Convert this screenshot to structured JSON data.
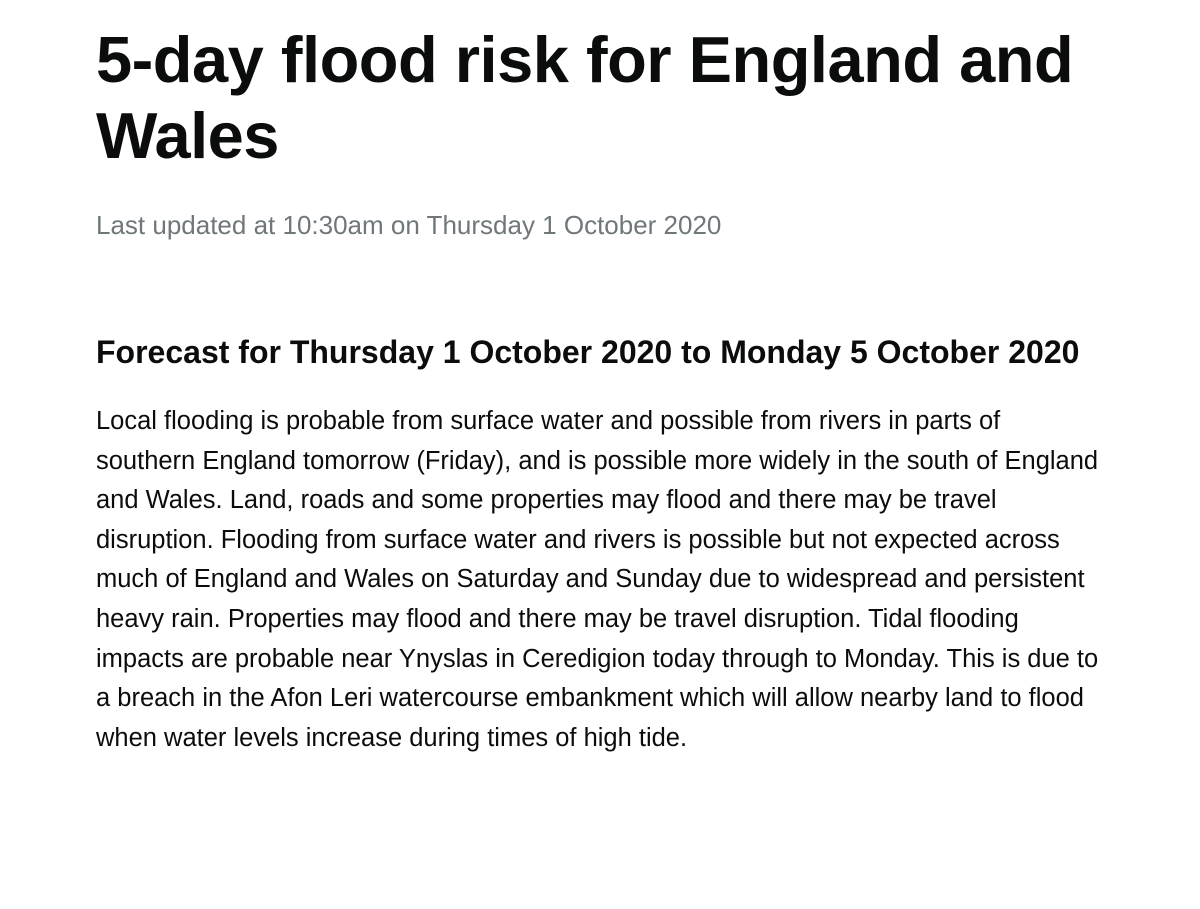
{
  "page": {
    "title": "5-day flood risk for England and Wales",
    "last_updated": "Last updated at 10:30am on Thursday 1 October 2020"
  },
  "forecast": {
    "heading": "Forecast for Thursday 1 October 2020 to Monday 5 October 2020",
    "summary": "Local flooding is probable from surface water and possible from rivers in parts of southern England tomorrow (Friday), and is possible more widely in the south of England and Wales. Land, roads and some properties may flood and there may be travel disruption. Flooding from surface water and rivers is possible but not expected across much of England and Wales on Saturday and Sunday due to widespread and persistent heavy rain. Properties may flood and there may be travel disruption. Tidal flooding impacts are probable near Ynyslas in Ceredigion today through to Monday. This is due to a breach in the Afon Leri watercourse embankment which will allow nearby land to flood when water levels increase during times of high tide."
  },
  "colors": {
    "text": "#0b0c0c",
    "secondary_text": "#6f777b",
    "background": "#ffffff"
  }
}
